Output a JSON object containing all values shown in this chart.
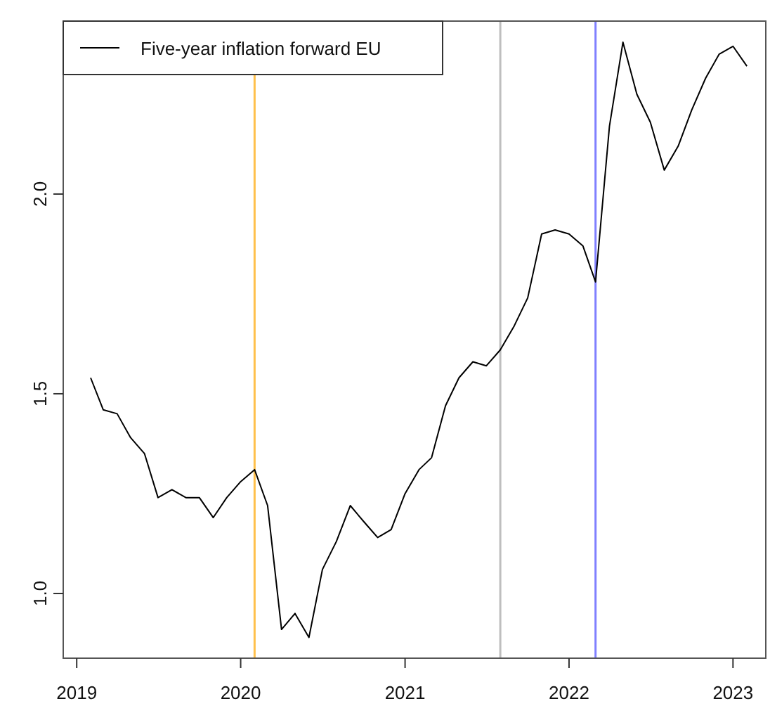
{
  "chart_data": {
    "type": "line",
    "legend": "top left",
    "grid": false,
    "x": [
      "2019-02",
      "2019-03",
      "2019-04",
      "2019-05",
      "2019-06",
      "2019-07",
      "2019-08",
      "2019-09",
      "2019-10",
      "2019-11",
      "2019-12",
      "2020-01",
      "2020-02",
      "2020-03",
      "2020-04",
      "2020-05",
      "2020-06",
      "2020-07",
      "2020-08",
      "2020-09",
      "2020-10",
      "2020-11",
      "2020-12",
      "2021-01",
      "2021-02",
      "2021-03",
      "2021-04",
      "2021-05",
      "2021-06",
      "2021-07",
      "2021-08",
      "2021-09",
      "2021-10",
      "2021-11",
      "2021-12",
      "2022-01",
      "2022-02",
      "2022-03",
      "2022-04",
      "2022-05",
      "2022-06",
      "2022-07",
      "2022-08",
      "2022-09",
      "2022-10",
      "2022-11",
      "2022-12",
      "2023-01",
      "2023-02"
    ],
    "series": [
      {
        "name": "Five-year inflation forward EU",
        "color": "#000000",
        "values": [
          1.54,
          1.46,
          1.45,
          1.39,
          1.35,
          1.24,
          1.26,
          1.24,
          1.24,
          1.19,
          1.24,
          1.28,
          1.31,
          1.22,
          0.91,
          0.95,
          0.89,
          1.06,
          1.13,
          1.22,
          1.18,
          1.14,
          1.16,
          1.25,
          1.31,
          1.34,
          1.47,
          1.54,
          1.58,
          1.57,
          1.61,
          1.67,
          1.74,
          1.9,
          1.91,
          1.9,
          1.87,
          1.78,
          2.17,
          2.38,
          2.25,
          2.18,
          2.06,
          2.12,
          2.21,
          2.29,
          2.35,
          2.37,
          2.32
        ]
      }
    ],
    "xlim": [
      "2018-12-02",
      "2023-03-15"
    ],
    "xticks": [
      {
        "value": "2019-01-01",
        "label": "2019"
      },
      {
        "value": "2020-01-01",
        "label": "2020"
      },
      {
        "value": "2021-01-01",
        "label": "2021"
      },
      {
        "value": "2022-01-01",
        "label": "2022"
      },
      {
        "value": "2023-01-01",
        "label": "2023"
      }
    ],
    "ylim": [
      0.838,
      2.433
    ],
    "yticks": [
      {
        "value": 1,
        "label": "1.0"
      },
      {
        "value": 1.5,
        "label": "1.5"
      },
      {
        "value": 2,
        "label": "2.0"
      }
    ],
    "ref_lines": [
      {
        "axis": "x",
        "value": "2020-02-01",
        "color": "#ffc04c"
      },
      {
        "axis": "x",
        "value": "2021-08-01",
        "color": "#bebebe"
      },
      {
        "axis": "x",
        "value": "2022-03-01",
        "color": "#8080ff"
      }
    ],
    "line_style": "solid",
    "marker": "none"
  }
}
